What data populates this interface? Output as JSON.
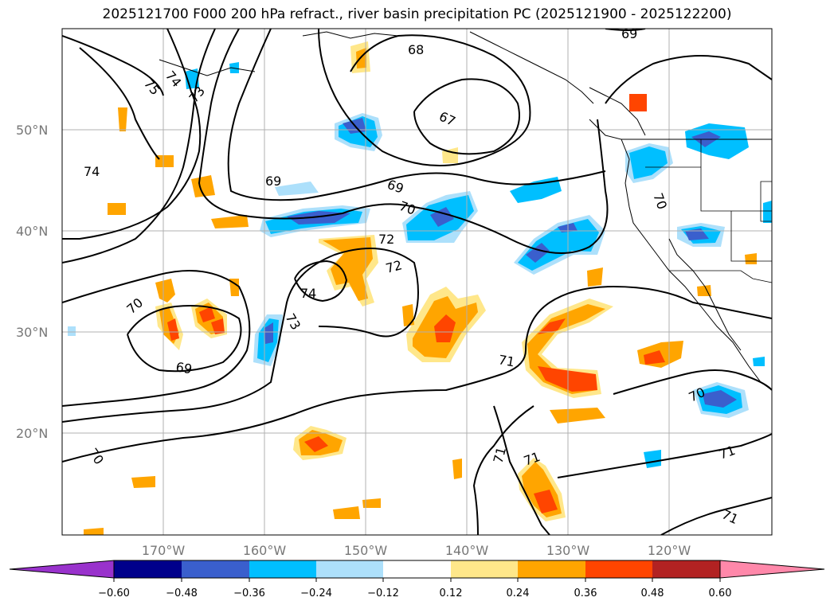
{
  "title": "2025121700 F000 200 hPa refract., river basin precipitation PC (2025121900 - 2025122200)",
  "lat_labels": [
    "50°N",
    "40°N",
    "30°N",
    "20°N"
  ],
  "lon_labels": [
    "170°W",
    "160°W",
    "150°W",
    "140°W",
    "130°W",
    "120°W"
  ],
  "contour_labels": [
    "75",
    "74",
    "73",
    "68",
    "69",
    "67",
    "69",
    "74",
    "69",
    "70",
    "72",
    "72",
    "74",
    "73",
    "70",
    "69",
    "71",
    "70",
    "71",
    "70",
    "70",
    "71",
    "71",
    "71"
  ],
  "colorbar": {
    "ticks": [
      "−0.60",
      "−0.48",
      "−0.36",
      "−0.24",
      "−0.12",
      "0.12",
      "0.24",
      "0.36",
      "0.48",
      "0.60"
    ],
    "colors": [
      "#9932CC",
      "#00008B",
      "#3A5FCD",
      "#00BFFF",
      "#ADE0FB",
      "#FFFFFF",
      "#FFE78A",
      "#FFA500",
      "#FF4500",
      "#B22222",
      "#FF88AA"
    ]
  }
}
